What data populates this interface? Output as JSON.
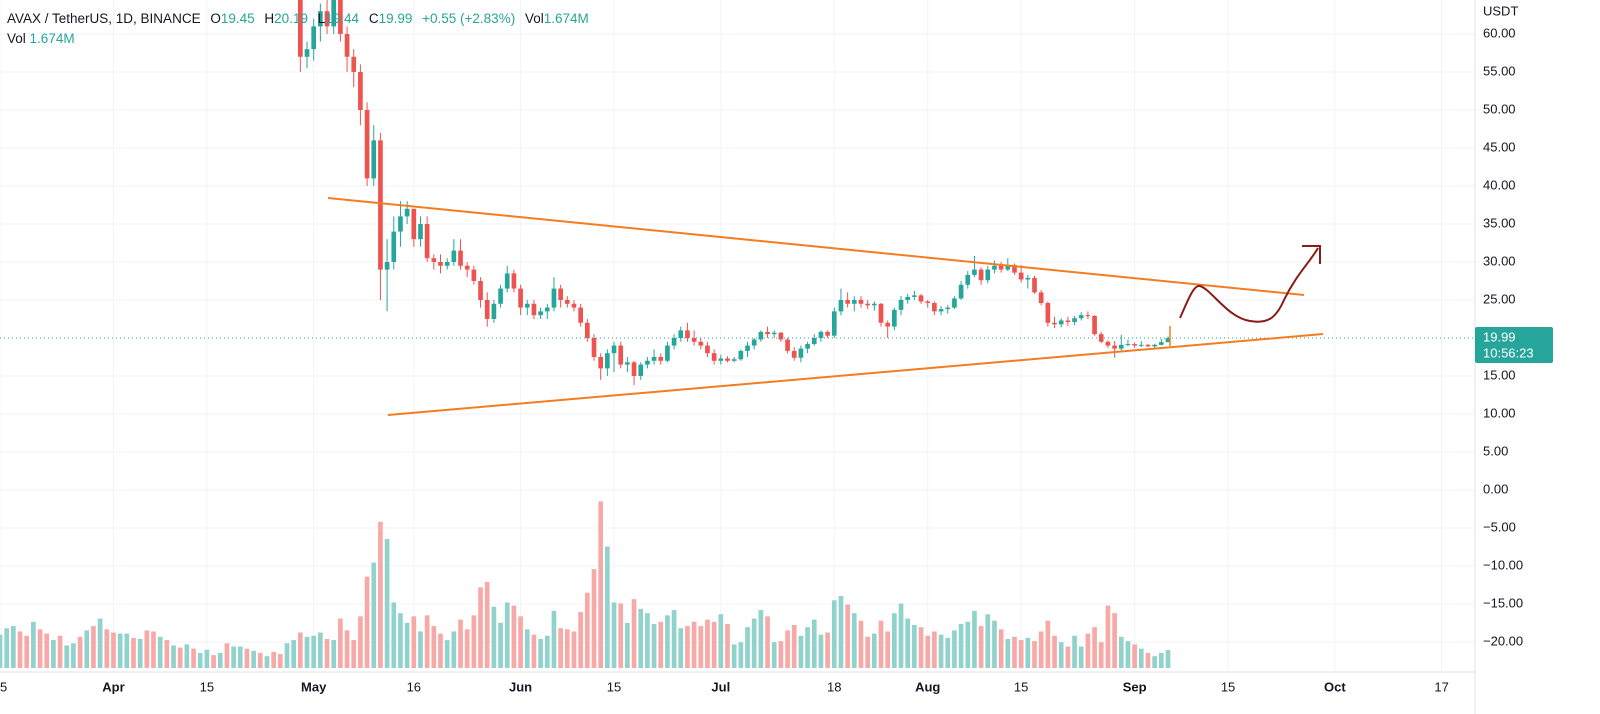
{
  "chart_data": {
    "type": "candlestick",
    "legend": {
      "symbol": "AVAX / TetherUS, 1D, BINANCE",
      "keys": [
        "O",
        "H",
        "L",
        "C"
      ],
      "change": "+0.55 (+2.83%)",
      "volume_key": "Vol",
      "volume": "1.674M"
    },
    "y_unit": "USDT",
    "countdown": "10:56:23",
    "up_color": "#26a69a",
    "down_color": "#ef5350",
    "grid": true,
    "xlim": [
      "03-15",
      "10-22"
    ],
    "xticks": [
      {
        "value": "03-15",
        "label": "5"
      },
      {
        "value": "04-01",
        "label": "Apr"
      },
      {
        "value": "04-15",
        "label": "15"
      },
      {
        "value": "05-01",
        "label": "May"
      },
      {
        "value": "05-16",
        "label": "16"
      },
      {
        "value": "06-01",
        "label": "Jun"
      },
      {
        "value": "06-15",
        "label": "15"
      },
      {
        "value": "07-01",
        "label": "Jul"
      },
      {
        "value": "07-18",
        "label": "18"
      },
      {
        "value": "08-01",
        "label": "Aug"
      },
      {
        "value": "08-15",
        "label": "15"
      },
      {
        "value": "09-01",
        "label": "Sep"
      },
      {
        "value": "09-15",
        "label": "15"
      },
      {
        "value": "10-01",
        "label": "Oct"
      },
      {
        "value": "10-17",
        "label": "17"
      }
    ],
    "ylim": [
      -23.95,
      64.47
    ],
    "yticks": [
      {
        "value": 60,
        "label": "60.00"
      },
      {
        "value": 55,
        "label": "55.00"
      },
      {
        "value": 50,
        "label": "50.00"
      },
      {
        "value": 45,
        "label": "45.00"
      },
      {
        "value": 40,
        "label": "40.00"
      },
      {
        "value": 35,
        "label": "35.00"
      },
      {
        "value": 30,
        "label": "30.00"
      },
      {
        "value": 25,
        "label": "25.00"
      },
      {
        "value": 15,
        "label": "15.00"
      },
      {
        "value": 10,
        "label": "10.00"
      },
      {
        "value": 5,
        "label": "5.00"
      },
      {
        "value": 0,
        "label": "0.00"
      },
      {
        "value": -5,
        "label": "−5.00"
      },
      {
        "value": -10,
        "label": "−10.00"
      },
      {
        "value": -15,
        "label": "−15.00"
      },
      {
        "value": -20,
        "label": "−20.00"
      }
    ],
    "x": [
      "03-15",
      "03-16",
      "03-17",
      "03-18",
      "03-19",
      "03-20",
      "03-21",
      "03-22",
      "03-23",
      "03-24",
      "03-25",
      "03-26",
      "03-27",
      "03-28",
      "03-29",
      "03-30",
      "03-31",
      "04-01",
      "04-02",
      "04-03",
      "04-04",
      "04-05",
      "04-06",
      "04-07",
      "04-08",
      "04-09",
      "04-10",
      "04-11",
      "04-12",
      "04-13",
      "04-14",
      "04-15",
      "04-16",
      "04-17",
      "04-18",
      "04-19",
      "04-20",
      "04-21",
      "04-22",
      "04-23",
      "04-24",
      "04-25",
      "04-26",
      "04-27",
      "04-28",
      "04-29",
      "04-30",
      "05-01",
      "05-02",
      "05-03",
      "05-04",
      "05-05",
      "05-06",
      "05-07",
      "05-08",
      "05-09",
      "05-10",
      "05-11",
      "05-12",
      "05-13",
      "05-14",
      "05-15",
      "05-16",
      "05-17",
      "05-18",
      "05-19",
      "05-20",
      "05-21",
      "05-22",
      "05-23",
      "05-24",
      "05-25",
      "05-26",
      "05-27",
      "05-28",
      "05-29",
      "05-30",
      "05-31",
      "06-01",
      "06-02",
      "06-03",
      "06-04",
      "06-05",
      "06-06",
      "06-07",
      "06-08",
      "06-09",
      "06-10",
      "06-11",
      "06-12",
      "06-13",
      "06-14",
      "06-15",
      "06-16",
      "06-17",
      "06-18",
      "06-19",
      "06-20",
      "06-21",
      "06-22",
      "06-23",
      "06-24",
      "06-25",
      "06-26",
      "06-27",
      "06-28",
      "06-29",
      "06-30",
      "07-01",
      "07-02",
      "07-03",
      "07-04",
      "07-05",
      "07-06",
      "07-07",
      "07-08",
      "07-09",
      "07-10",
      "07-11",
      "07-12",
      "07-13",
      "07-14",
      "07-15",
      "07-16",
      "07-17",
      "07-18",
      "07-19",
      "07-20",
      "07-21",
      "07-22",
      "07-23",
      "07-24",
      "07-25",
      "07-26",
      "07-27",
      "07-28",
      "07-29",
      "07-30",
      "07-31",
      "08-01",
      "08-02",
      "08-03",
      "08-04",
      "08-05",
      "08-06",
      "08-07",
      "08-08",
      "08-09",
      "08-10",
      "08-11",
      "08-12",
      "08-13",
      "08-14",
      "08-15",
      "08-16",
      "08-17",
      "08-18",
      "08-19",
      "08-20",
      "08-21",
      "08-22",
      "08-23",
      "08-24",
      "08-25",
      "08-26",
      "08-27",
      "08-28",
      "08-29",
      "08-30",
      "08-31",
      "09-01",
      "09-02",
      "09-03",
      "09-04",
      "09-05",
      "09-06"
    ],
    "open": [
      null,
      null,
      null,
      null,
      null,
      null,
      null,
      null,
      null,
      null,
      null,
      null,
      null,
      null,
      null,
      null,
      null,
      null,
      null,
      null,
      null,
      null,
      null,
      null,
      null,
      null,
      null,
      null,
      null,
      null,
      null,
      null,
      null,
      null,
      null,
      null,
      null,
      null,
      null,
      null,
      null,
      null,
      null,
      null,
      null,
      67,
      57,
      58,
      61,
      63,
      61,
      66,
      60,
      57,
      55,
      50,
      41,
      46,
      29,
      30,
      34,
      36,
      37,
      33,
      35,
      30.5,
      30,
      29.5,
      30,
      31.5,
      29.5,
      29,
      27.5,
      25,
      22.5,
      24.5,
      26.5,
      28.5,
      26.5,
      24,
      24.5,
      23,
      23.5,
      24,
      26.5,
      25,
      24.5,
      24,
      22,
      20,
      17.5,
      16,
      18,
      19,
      16.5,
      16.8,
      15,
      16.5,
      17,
      17.5,
      17,
      19,
      20,
      21,
      20,
      19.5,
      19,
      18,
      17,
      17.3,
      17,
      17.2,
      18.3,
      19,
      19.8,
      20.8,
      20.5,
      20.7,
      19.8,
      18.3,
      17.4,
      18.6,
      19.2,
      20,
      20.8,
      20.3,
      23.5,
      25,
      24.5,
      25,
      24.5,
      24.3,
      24.5,
      22,
      21.5,
      23.7,
      25,
      25.4,
      25.6,
      24.8,
      24.6,
      23.5,
      23.8,
      24,
      25.2,
      27,
      28.3,
      29,
      27.6,
      29,
      29.5,
      29,
      29.6,
      28.6,
      27.7,
      27.9,
      26,
      24.6,
      22,
      21.8,
      22.3,
      22.1,
      22.6,
      23,
      22.9,
      20.5,
      19.5,
      19,
      18.6,
      19.1,
      19.2,
      19,
      19.1,
      18.9,
      19.1,
      19.45
    ],
    "high": [
      null,
      null,
      null,
      null,
      null,
      null,
      null,
      null,
      null,
      null,
      null,
      null,
      null,
      null,
      null,
      null,
      null,
      null,
      null,
      null,
      null,
      null,
      null,
      null,
      null,
      null,
      null,
      null,
      null,
      null,
      null,
      null,
      null,
      null,
      null,
      null,
      null,
      null,
      null,
      null,
      null,
      null,
      null,
      null,
      null,
      68,
      59,
      62,
      64,
      65,
      67,
      67,
      61,
      58,
      56,
      51,
      48,
      47,
      33,
      36,
      38,
      38,
      37,
      36,
      36,
      31,
      31,
      30.5,
      33,
      33,
      30,
      29.5,
      28,
      26,
      25,
      27,
      29.5,
      29,
      27,
      25,
      25,
      24,
      24.5,
      28,
      27,
      25.5,
      25,
      24.5,
      22.5,
      20.5,
      18,
      18.5,
      19.5,
      19.5,
      17.5,
      17,
      16.8,
      17.5,
      18.5,
      18,
      19.5,
      20.5,
      21.5,
      22,
      21,
      20,
      19.5,
      18.5,
      17.8,
      17.6,
      17.5,
      18.5,
      19.5,
      20,
      21,
      21.5,
      21,
      20.8,
      20,
      18.8,
      19,
      19.5,
      20.5,
      21,
      21,
      24,
      26.5,
      26,
      25.5,
      25.5,
      25,
      24.8,
      24.6,
      22.3,
      24,
      25.5,
      25.8,
      26.2,
      25.8,
      25,
      24.8,
      24.2,
      24.3,
      25.5,
      27.5,
      28.8,
      30.8,
      29.3,
      29.5,
      30.2,
      30,
      30.5,
      29.8,
      29.6,
      28.3,
      28.2,
      26.3,
      24.8,
      22.8,
      22.6,
      22.8,
      22.9,
      23.4,
      23.5,
      23,
      20.8,
      19.7,
      19.6,
      20.4,
      19.8,
      19.4,
      19.6,
      19.2,
      19.2,
      19.9,
      20.19
    ],
    "low": [
      null,
      null,
      null,
      null,
      null,
      null,
      null,
      null,
      null,
      null,
      null,
      null,
      null,
      null,
      null,
      null,
      null,
      null,
      null,
      null,
      null,
      null,
      null,
      null,
      null,
      null,
      null,
      null,
      null,
      null,
      null,
      null,
      null,
      null,
      null,
      null,
      null,
      null,
      null,
      null,
      null,
      null,
      null,
      null,
      null,
      55,
      55.5,
      56.5,
      59,
      60,
      60,
      59,
      55,
      53,
      48,
      40,
      40,
      25,
      23.5,
      29,
      32,
      35,
      32,
      32,
      30,
      29,
      28.5,
      29,
      29.5,
      29,
      28,
      27,
      24,
      21.5,
      22,
      24,
      26,
      26,
      23,
      23,
      22.5,
      22.5,
      22.5,
      23.5,
      24,
      24,
      23.5,
      21.5,
      19.5,
      17,
      14.5,
      15,
      15.5,
      16,
      15.5,
      13.8,
      14.5,
      16,
      16.5,
      16.5,
      16.8,
      18.5,
      19.5,
      19.5,
      19,
      18.5,
      17.5,
      16.5,
      16.5,
      16.8,
      16.8,
      17,
      17.5,
      18.5,
      19.5,
      20,
      20,
      19.5,
      18,
      17,
      16.8,
      18,
      19,
      19.5,
      20,
      20,
      23,
      24,
      23.5,
      24,
      23.8,
      23.6,
      21.5,
      20,
      21,
      23,
      24.5,
      25,
      24.5,
      24,
      23,
      23,
      23.2,
      23.8,
      25,
      26.5,
      28,
      27,
      27.2,
      28.5,
      28.6,
      28.8,
      28.3,
      27.3,
      26.5,
      25.8,
      24.3,
      21.5,
      21.3,
      21.4,
      21.6,
      21.7,
      22.3,
      22.5,
      20.3,
      19.3,
      18.7,
      17.4,
      18.3,
      18.9,
      18.7,
      18.8,
      18.8,
      18.7,
      19,
      19.44
    ],
    "close": [
      null,
      null,
      null,
      null,
      null,
      null,
      null,
      null,
      null,
      null,
      null,
      null,
      null,
      null,
      null,
      null,
      null,
      null,
      null,
      null,
      null,
      null,
      null,
      null,
      null,
      null,
      null,
      null,
      null,
      null,
      null,
      null,
      null,
      null,
      null,
      null,
      null,
      null,
      null,
      null,
      null,
      null,
      null,
      null,
      null,
      57,
      58,
      61,
      63,
      61,
      66,
      60,
      57,
      55,
      50,
      41,
      46,
      29,
      30,
      34,
      36,
      37,
      33,
      35,
      30.5,
      30,
      29.5,
      30,
      31.5,
      29.5,
      29,
      27.5,
      25,
      22.5,
      24.5,
      26.5,
      28.5,
      26.5,
      24,
      24.5,
      23,
      23.5,
      24,
      26.5,
      25,
      24.5,
      24,
      22,
      20,
      17.5,
      16,
      18,
      19,
      16.5,
      16.8,
      15,
      16.5,
      17,
      17.5,
      17,
      19,
      20,
      21,
      20,
      19.5,
      19,
      18,
      17,
      17.3,
      17,
      17.2,
      18.3,
      19,
      19.8,
      20.8,
      20.5,
      20.7,
      19.8,
      18.3,
      17.4,
      18.6,
      19.2,
      20,
      20.8,
      20.3,
      23.5,
      25,
      24.5,
      25,
      24.5,
      24.3,
      24.5,
      22,
      21.5,
      23.7,
      25,
      25.4,
      25.6,
      24.8,
      24.6,
      23.5,
      23.8,
      24,
      25.2,
      27,
      28.3,
      29,
      27.6,
      29,
      29.5,
      29,
      29.6,
      28.6,
      27.7,
      27.9,
      26,
      24.6,
      22,
      21.8,
      22.3,
      22.1,
      22.6,
      23,
      22.9,
      20.5,
      19.5,
      19,
      18.6,
      19.1,
      19.2,
      19,
      19.1,
      18.9,
      19.1,
      19.45,
      19.99
    ],
    "volume": [
      3.1,
      3.7,
      3.9,
      3.4,
      3,
      4.3,
      3.6,
      3.2,
      2.6,
      3,
      2.1,
      2.3,
      2.9,
      3.5,
      3.9,
      4.6,
      3.6,
      3.3,
      3.2,
      3.2,
      2.8,
      2.7,
      3.5,
      3.4,
      2.9,
      2.6,
      2.1,
      1.9,
      2.2,
      1.8,
      1.4,
      1.7,
      1.2,
      1.4,
      2.3,
      2,
      2,
      1.8,
      1.6,
      1.4,
      1.1,
      1.5,
      1.3,
      2.3,
      2.6,
      3.3,
      2.9,
      3,
      3.3,
      2.7,
      2.6,
      4.6,
      3.5,
      2.6,
      4.8,
      8.5,
      9.8,
      13.6,
      12,
      6.1,
      5.1,
      4.2,
      4.8,
      3.4,
      4.9,
      3.9,
      3.2,
      2.6,
      3.4,
      4.5,
      3.6,
      4.9,
      7.5,
      8,
      5.7,
      4.2,
      6.1,
      5.8,
      4.8,
      3.6,
      3.1,
      2.7,
      3,
      5.3,
      3.7,
      3.6,
      3.4,
      5.2,
      7,
      9.2,
      15.5,
      11.3,
      6.1,
      6,
      4.2,
      6.4,
      5.5,
      5.1,
      4.1,
      4.3,
      4.9,
      5.4,
      3.7,
      3.9,
      4.3,
      3.9,
      4.5,
      4.3,
      5,
      4.1,
      2.2,
      2.4,
      3.8,
      4.6,
      5.4,
      4.8,
      2.4,
      2.5,
      3.5,
      4,
      3,
      3.8,
      4.5,
      3.1,
      3.3,
      6.3,
      6.7,
      5.9,
      5.1,
      4.4,
      2.9,
      3.2,
      4.4,
      3.4,
      5.1,
      6,
      4.6,
      4,
      3.8,
      3,
      3.4,
      3.1,
      2.8,
      3.5,
      4.1,
      4.3,
      5.3,
      3.9,
      5,
      4.4,
      3.6,
      2.7,
      2.9,
      2.6,
      2.8,
      2.5,
      3.4,
      4.4,
      3,
      2.4,
      2,
      3,
      2,
      3.2,
      3.8,
      2.4,
      5.8,
      5.1,
      2.9,
      2.5,
      2.2,
      1.8,
      1.4,
      1.1,
      1.4,
      1.674
    ],
    "volume_colors": [
      "#92d2cc",
      "#92d2cc",
      "#92d2cc",
      "#f7a9a7",
      "#f7a9a7",
      "#92d2cc",
      "#f7a9a7",
      "#f7a9a7",
      "#92d2cc",
      "#f7a9a7",
      "#92d2cc",
      "#92d2cc",
      "#f7a9a7",
      "#92d2cc",
      "#f7a9a7",
      "#92d2cc",
      "#f7a9a7",
      "#f7a9a7",
      "#92d2cc",
      "#92d2cc",
      "#f7a9a7",
      "#92d2cc",
      "#f7a9a7",
      "#f7a9a7",
      "#92d2cc",
      "#f7a9a7",
      "#92d2cc",
      "#f7a9a7",
      "#92d2cc",
      "#f7a9a7",
      "#92d2cc",
      "#92d2cc",
      "#f7a9a7",
      "#92d2cc",
      "#f7a9a7",
      "#92d2cc",
      "#92d2cc",
      "#f7a9a7",
      "#92d2cc",
      "#f7a9a7",
      "#92d2cc",
      "#f7a9a7",
      "#f7a9a7",
      "#92d2cc",
      "#92d2cc",
      "#f7a9a7",
      "#92d2cc",
      "#92d2cc",
      "#92d2cc",
      "#f7a9a7",
      "#92d2cc",
      "#f7a9a7",
      "#f7a9a7",
      "#f7a9a7",
      "#f7a9a7",
      "#f7a9a7",
      "#92d2cc",
      "#f7a9a7",
      "#92d2cc",
      "#92d2cc",
      "#92d2cc",
      "#92d2cc",
      "#f7a9a7",
      "#92d2cc",
      "#f7a9a7",
      "#f7a9a7",
      "#f7a9a7",
      "#92d2cc",
      "#92d2cc",
      "#f7a9a7",
      "#f7a9a7",
      "#f7a9a7",
      "#f7a9a7",
      "#f7a9a7",
      "#92d2cc",
      "#92d2cc",
      "#92d2cc",
      "#f7a9a7",
      "#f7a9a7",
      "#92d2cc",
      "#f7a9a7",
      "#92d2cc",
      "#92d2cc",
      "#92d2cc",
      "#f7a9a7",
      "#f7a9a7",
      "#f7a9a7",
      "#f7a9a7",
      "#f7a9a7",
      "#f7a9a7",
      "#f7a9a7",
      "#92d2cc",
      "#92d2cc",
      "#f7a9a7",
      "#92d2cc",
      "#f7a9a7",
      "#92d2cc",
      "#92d2cc",
      "#92d2cc",
      "#f7a9a7",
      "#92d2cc",
      "#92d2cc",
      "#92d2cc",
      "#f7a9a7",
      "#f7a9a7",
      "#f7a9a7",
      "#f7a9a7",
      "#f7a9a7",
      "#92d2cc",
      "#f7a9a7",
      "#92d2cc",
      "#92d2cc",
      "#92d2cc",
      "#92d2cc",
      "#92d2cc",
      "#f7a9a7",
      "#92d2cc",
      "#f7a9a7",
      "#f7a9a7",
      "#f7a9a7",
      "#92d2cc",
      "#92d2cc",
      "#92d2cc",
      "#92d2cc",
      "#f7a9a7",
      "#92d2cc",
      "#92d2cc",
      "#f7a9a7",
      "#92d2cc",
      "#f7a9a7",
      "#f7a9a7",
      "#92d2cc",
      "#f7a9a7",
      "#f7a9a7",
      "#92d2cc",
      "#92d2cc",
      "#92d2cc",
      "#92d2cc",
      "#f7a9a7",
      "#f7a9a7",
      "#f7a9a7",
      "#92d2cc",
      "#92d2cc",
      "#92d2cc",
      "#92d2cc",
      "#92d2cc",
      "#92d2cc",
      "#f7a9a7",
      "#92d2cc",
      "#92d2cc",
      "#f7a9a7",
      "#92d2cc",
      "#f7a9a7",
      "#f7a9a7",
      "#92d2cc",
      "#f7a9a7",
      "#f7a9a7",
      "#f7a9a7",
      "#f7a9a7",
      "#92d2cc",
      "#f7a9a7",
      "#92d2cc",
      "#92d2cc",
      "#f7a9a7",
      "#f7a9a7",
      "#f7a9a7",
      "#f7a9a7",
      "#f7a9a7",
      "#92d2cc",
      "#92d2cc",
      "#f7a9a7",
      "#92d2cc",
      "#f7a9a7",
      "#92d2cc",
      "#92d2cc",
      "#92d2cc"
    ]
  }
}
